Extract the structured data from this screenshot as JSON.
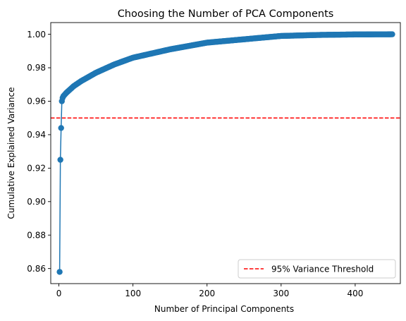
{
  "chart_data": {
    "type": "line",
    "title": "Choosing the Number of PCA Components",
    "xlabel": "Number of Principal Components",
    "ylabel": "Cumulative Explained Variance",
    "xlim": [
      -11,
      461
    ],
    "ylim": [
      0.851,
      1.007
    ],
    "x_ticks": [
      0,
      100,
      200,
      300,
      400
    ],
    "y_ticks": [
      0.86,
      0.88,
      0.9,
      0.92,
      0.94,
      0.96,
      0.98,
      1.0
    ],
    "x_tick_labels": [
      "0",
      "100",
      "200",
      "300",
      "400"
    ],
    "y_tick_labels": [
      "0.86",
      "0.88",
      "0.90",
      "0.92",
      "0.94",
      "0.96",
      "0.98",
      "1.00"
    ],
    "grid": false,
    "legend_position": "lower-right",
    "series": [
      {
        "color": "#1f77b4",
        "marker": "circle",
        "n_points": 450,
        "first_points": [
          [
            1,
            0.858
          ],
          [
            2,
            0.925
          ],
          [
            3,
            0.944
          ],
          [
            4,
            0.96
          ],
          [
            5,
            0.962
          ],
          [
            6,
            0.963
          ],
          [
            8,
            0.964
          ],
          [
            10,
            0.965
          ],
          [
            15,
            0.967
          ]
        ],
        "anchors": [
          [
            20,
            0.969
          ],
          [
            30,
            0.972
          ],
          [
            50,
            0.977
          ],
          [
            75,
            0.982
          ],
          [
            100,
            0.986
          ],
          [
            150,
            0.991
          ],
          [
            200,
            0.995
          ],
          [
            250,
            0.997
          ],
          [
            300,
            0.999
          ],
          [
            350,
            0.9996
          ],
          [
            400,
            0.9999
          ],
          [
            450,
            1.0
          ]
        ]
      }
    ],
    "threshold": {
      "value": 0.95,
      "color": "#ff0000",
      "style": "dashed",
      "label": "95% Variance Threshold"
    }
  }
}
